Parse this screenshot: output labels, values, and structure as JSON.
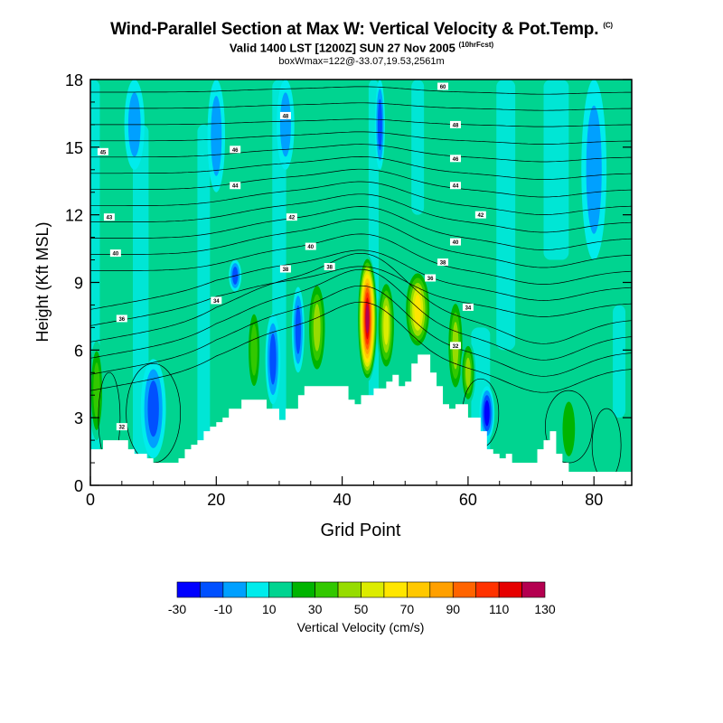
{
  "header": {
    "title": "Wind-Parallel Section at Max W: Vertical Velocity & Pot.Temp.",
    "title_tag": "(C)",
    "subtitle": "Valid 1400 LST [1200Z] SUN 27 Nov 2005",
    "subtitle_tag": "(10hrFcst)",
    "box_info": "boxWmax=122@-33.07,19.53,2561m"
  },
  "chart_data": {
    "type": "heatmap",
    "xlabel": "Grid Point",
    "ylabel": "Height (Kft MSL)",
    "xlim": [
      0,
      86
    ],
    "ylim": [
      0,
      18
    ],
    "xticks": [
      0,
      20,
      40,
      60,
      80
    ],
    "yticks": [
      0,
      3,
      6,
      9,
      12,
      15,
      18
    ],
    "colorbar": {
      "label": "Vertical Velocity (cm/s)",
      "tick_labels": [
        "-30",
        "-10",
        "10",
        "30",
        "50",
        "70",
        "90",
        "110",
        "130"
      ],
      "colors": [
        "#0000ff",
        "#0050ff",
        "#00a0ff",
        "#00ecec",
        "#00d490",
        "#00b400",
        "#32c800",
        "#96dc00",
        "#dcec00",
        "#ffe600",
        "#ffc800",
        "#ffa000",
        "#ff6400",
        "#ff3200",
        "#e60000",
        "#b40050"
      ]
    },
    "terrain_profile": [
      [
        0,
        1.6
      ],
      [
        2,
        2
      ],
      [
        5,
        2
      ],
      [
        6,
        1.6
      ],
      [
        7,
        1.4
      ],
      [
        8,
        1.4
      ],
      [
        9,
        1.2
      ],
      [
        10,
        1
      ],
      [
        13,
        1
      ],
      [
        14,
        1.2
      ],
      [
        15,
        1.6
      ],
      [
        16,
        1.8
      ],
      [
        17,
        2
      ],
      [
        18,
        2.4
      ],
      [
        19,
        2.6
      ],
      [
        20,
        2.8
      ],
      [
        21,
        3
      ],
      [
        22,
        3.4
      ],
      [
        24,
        3.8
      ],
      [
        27,
        3.8
      ],
      [
        28,
        3.4
      ],
      [
        29,
        3.4
      ],
      [
        30,
        2.9
      ],
      [
        31,
        3.4
      ],
      [
        33,
        4
      ],
      [
        34,
        4.4
      ],
      [
        40,
        4.4
      ],
      [
        41,
        3.8
      ],
      [
        42,
        3.6
      ],
      [
        43,
        4
      ],
      [
        44,
        4
      ],
      [
        45,
        4.3
      ],
      [
        46,
        4.3
      ],
      [
        47,
        4.6
      ],
      [
        48,
        4.9
      ],
      [
        49,
        4.4
      ],
      [
        50,
        4.6
      ],
      [
        51,
        5.4
      ],
      [
        52,
        5.8
      ],
      [
        53,
        5.8
      ],
      [
        54,
        5
      ],
      [
        55,
        4.4
      ],
      [
        56,
        3.6
      ],
      [
        57,
        3.4
      ],
      [
        58,
        3.6
      ],
      [
        59,
        3.6
      ],
      [
        60,
        3
      ],
      [
        61,
        3
      ],
      [
        62,
        2.4
      ],
      [
        63,
        1.6
      ],
      [
        64,
        1.4
      ],
      [
        65,
        1.2
      ],
      [
        66,
        1.4
      ],
      [
        67,
        1
      ],
      [
        70,
        1
      ],
      [
        71,
        1.6
      ],
      [
        72,
        2
      ],
      [
        73,
        2.4
      ],
      [
        74,
        1.4
      ],
      [
        75,
        1
      ],
      [
        76,
        0.6
      ],
      [
        86,
        0.6
      ]
    ],
    "vertical_velocity_features": [
      {
        "x": 44,
        "y_bottom": 4.6,
        "y_top": 10.2,
        "half_width": 1.6,
        "peak": 122
      },
      {
        "x": 47,
        "y_bottom": 5.0,
        "y_top": 9.2,
        "half_width": 1.5,
        "peak": 55
      },
      {
        "x": 52,
        "y_bottom": 6.0,
        "y_top": 9.6,
        "half_width": 2.2,
        "peak": 60
      },
      {
        "x": 58,
        "y_bottom": 4.0,
        "y_top": 8.4,
        "half_width": 1.4,
        "peak": 45
      },
      {
        "x": 36,
        "y_bottom": 4.8,
        "y_top": 9.2,
        "half_width": 1.6,
        "peak": 40
      },
      {
        "x": 26,
        "y_bottom": 4.0,
        "y_top": 8.0,
        "half_width": 1.2,
        "peak": 35
      },
      {
        "x": 60,
        "y_bottom": 3.6,
        "y_top": 6.4,
        "half_width": 1.2,
        "peak": 40
      },
      {
        "x": 1,
        "y_bottom": 2.0,
        "y_top": 6.4,
        "half_width": 1.2,
        "peak": 30
      },
      {
        "x": 10,
        "y_bottom": 1.2,
        "y_top": 5.6,
        "half_width": 2.0,
        "peak": -20
      },
      {
        "x": 29,
        "y_bottom": 3.6,
        "y_top": 7.6,
        "half_width": 1.2,
        "peak": -20
      },
      {
        "x": 33,
        "y_bottom": 5.0,
        "y_top": 8.8,
        "half_width": 1.0,
        "peak": -25
      },
      {
        "x": 63,
        "y_bottom": 2.0,
        "y_top": 4.4,
        "half_width": 1.2,
        "peak": -30
      },
      {
        "x": 23,
        "y_bottom": 8.6,
        "y_top": 10.0,
        "half_width": 1.0,
        "peak": -25
      },
      {
        "x": 46,
        "y_bottom": 14.0,
        "y_top": 18.0,
        "half_width": 0.8,
        "peak": -20
      },
      {
        "x": 7,
        "y_bottom": 14.0,
        "y_top": 18.0,
        "half_width": 1.6,
        "peak": -10
      },
      {
        "x": 20,
        "y_bottom": 13.0,
        "y_top": 18.0,
        "half_width": 1.4,
        "peak": -10
      },
      {
        "x": 31,
        "y_bottom": 14.0,
        "y_top": 18.0,
        "half_width": 1.4,
        "peak": -10
      },
      {
        "x": 80,
        "y_bottom": 10.0,
        "y_top": 18.0,
        "half_width": 2.0,
        "peak": -10
      },
      {
        "x": 76,
        "y_bottom": 0.8,
        "y_top": 4.2,
        "half_width": 1.6,
        "peak": 28
      },
      {
        "x": 14,
        "y_bottom": 12.0,
        "y_top": 17.0,
        "half_width": 1.0,
        "peak": 15
      }
    ],
    "theta_contour_labels": [
      {
        "text": "60",
        "x": 56,
        "y": 17.7
      },
      {
        "text": "48",
        "x": 31,
        "y": 16.4
      },
      {
        "text": "48",
        "x": 58,
        "y": 16.0
      },
      {
        "text": "46",
        "x": 23,
        "y": 14.9
      },
      {
        "text": "46",
        "x": 58,
        "y": 14.5
      },
      {
        "text": "45",
        "x": 2,
        "y": 14.8
      },
      {
        "text": "44",
        "x": 23,
        "y": 13.3
      },
      {
        "text": "44",
        "x": 58,
        "y": 13.3
      },
      {
        "text": "42",
        "x": 62,
        "y": 12.0
      },
      {
        "text": "43",
        "x": 3,
        "y": 11.9
      },
      {
        "text": "42",
        "x": 32,
        "y": 11.9
      },
      {
        "text": "40",
        "x": 4,
        "y": 10.3
      },
      {
        "text": "40",
        "x": 35,
        "y": 10.6
      },
      {
        "text": "40",
        "x": 58,
        "y": 10.8
      },
      {
        "text": "38",
        "x": 31,
        "y": 9.6
      },
      {
        "text": "38",
        "x": 38,
        "y": 9.7
      },
      {
        "text": "38",
        "x": 56,
        "y": 9.9
      },
      {
        "text": "36",
        "x": 54,
        "y": 9.2
      },
      {
        "text": "34",
        "x": 20,
        "y": 8.2
      },
      {
        "text": "34",
        "x": 60,
        "y": 7.9
      },
      {
        "text": "36",
        "x": 5,
        "y": 7.4
      },
      {
        "text": "32",
        "x": 58,
        "y": 6.2
      },
      {
        "text": "32",
        "x": 5,
        "y": 2.6
      }
    ]
  }
}
